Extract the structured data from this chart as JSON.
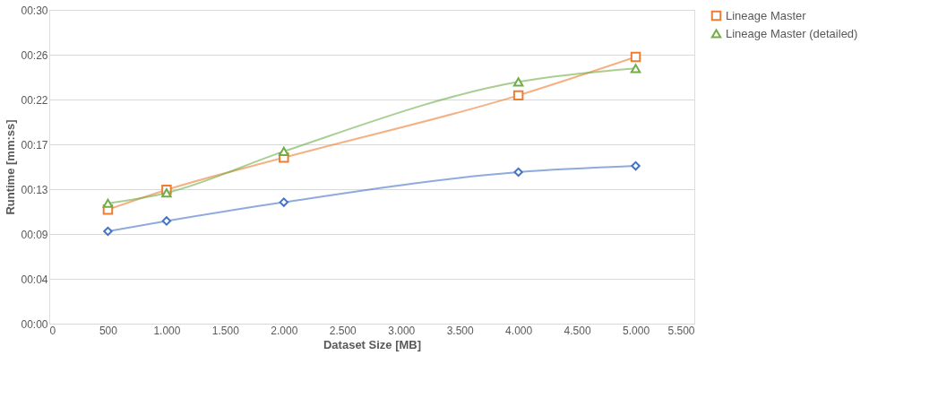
{
  "chart_data": {
    "type": "line",
    "xlabel": "Dataset Size [MB]",
    "ylabel": "Runtime [mm:ss]",
    "x": [
      500,
      1000,
      2000,
      4000,
      5000
    ],
    "xlim": [
      0,
      5500
    ],
    "xticks": [
      0,
      {
        "value": 500,
        "label": "500"
      },
      {
        "value": 1000,
        "label": "1.000"
      },
      {
        "value": 1500,
        "label": "1.500"
      },
      {
        "value": 2000,
        "label": "2.000"
      },
      {
        "value": 2500,
        "label": "2.500"
      },
      {
        "value": 3000,
        "label": "3.000"
      },
      {
        "value": 3500,
        "label": "3.500"
      },
      {
        "value": 4000,
        "label": "4.000"
      },
      {
        "value": 4500,
        "label": "4.500"
      },
      {
        "value": 5000,
        "label": "5.000"
      },
      {
        "value": 5500,
        "label": "5.500"
      }
    ],
    "ylim": [
      0,
      30.24
    ],
    "yticks": [
      {
        "value": 0,
        "label": "00:00"
      },
      {
        "value": 4.32,
        "label": "00:04"
      },
      {
        "value": 8.64,
        "label": "00:09"
      },
      {
        "value": 12.96,
        "label": "00:13"
      },
      {
        "value": 17.28,
        "label": "00:17"
      },
      {
        "value": 21.6,
        "label": "00:22"
      },
      {
        "value": 25.92,
        "label": "00:26"
      },
      {
        "value": 30.24,
        "label": "00:30"
      }
    ],
    "grid": "y",
    "legend": "right",
    "line_style": "solid",
    "series": [
      {
        "color": "#4472c4",
        "marker": "diamond",
        "values": [
          8.9,
          9.9,
          11.7,
          14.6,
          15.2
        ]
      },
      {
        "name": "Lineage Master",
        "color": "#ed7d31",
        "marker": "square",
        "values": [
          11.0,
          12.9,
          16.0,
          22.0,
          25.7
        ]
      },
      {
        "name": "Lineage Master (detailed)",
        "color": "#70ad47",
        "marker": "triangle",
        "values": [
          11.6,
          12.6,
          16.6,
          23.3,
          24.6
        ]
      }
    ]
  }
}
